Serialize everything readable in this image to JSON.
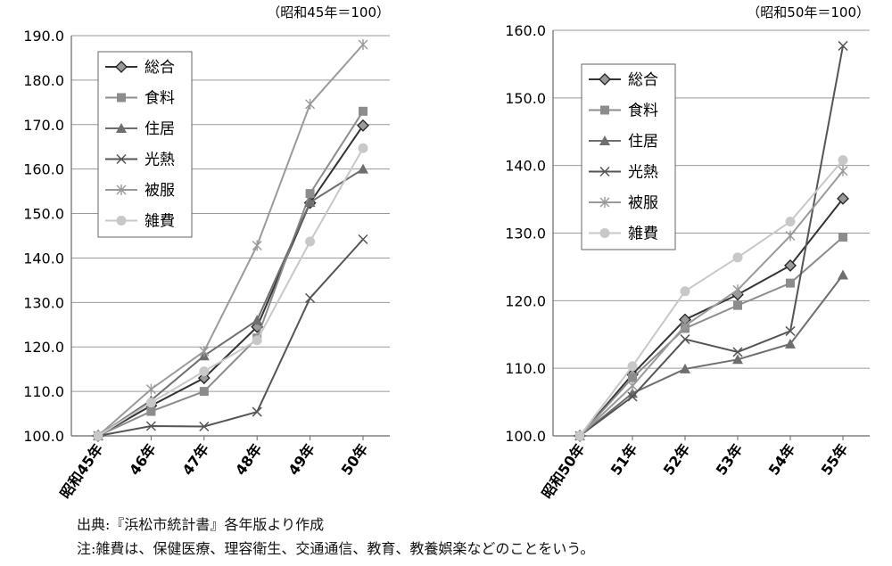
{
  "chart_data": [
    {
      "type": "line",
      "title": "",
      "base_note": "（昭和45年＝100）",
      "xlabel": "",
      "ylabel": "",
      "categories": [
        "昭和45年",
        "46年",
        "47年",
        "48年",
        "49年",
        "50年"
      ],
      "ylim": [
        100,
        190
      ],
      "yticks": [
        "100.0",
        "110.0",
        "120.0",
        "130.0",
        "140.0",
        "150.0",
        "160.0",
        "170.0",
        "180.0",
        "190.0"
      ],
      "grid": true,
      "legend_position": "top-left",
      "series": [
        {
          "name": "総合",
          "values": [
            100.0,
            106.8,
            113.0,
            124.5,
            152.4,
            169.8
          ],
          "color": "#333333",
          "marker": "diamond"
        },
        {
          "name": "食料",
          "values": [
            100.0,
            105.5,
            110.0,
            122.0,
            154.5,
            173.0
          ],
          "color": "#8c8c8c",
          "marker": "square"
        },
        {
          "name": "住居",
          "values": [
            100.0,
            108.0,
            118.0,
            126.0,
            152.5,
            160.0
          ],
          "color": "#6e6e6e",
          "marker": "triangle"
        },
        {
          "name": "光熱",
          "values": [
            100.0,
            102.2,
            102.1,
            105.4,
            131.0,
            144.2
          ],
          "color": "#555555",
          "marker": "x"
        },
        {
          "name": "被服",
          "values": [
            100.0,
            110.5,
            119.0,
            142.8,
            174.6,
            188.0
          ],
          "color": "#9a9a9a",
          "marker": "star"
        },
        {
          "name": "雑費",
          "values": [
            100.0,
            107.5,
            114.5,
            121.5,
            143.7,
            164.7
          ],
          "color": "#c8c8c8",
          "marker": "circle"
        }
      ]
    },
    {
      "type": "line",
      "title": "",
      "base_note": "（昭和50年＝100）",
      "xlabel": "",
      "ylabel": "",
      "categories": [
        "昭和50年",
        "51年",
        "52年",
        "53年",
        "54年",
        "55年"
      ],
      "ylim": [
        100,
        160
      ],
      "yticks": [
        "100.0",
        "110.0",
        "120.0",
        "130.0",
        "140.0",
        "150.0",
        "160.0"
      ],
      "grid": true,
      "legend_position": "top-left",
      "series": [
        {
          "name": "総合",
          "values": [
            100.0,
            109.1,
            117.2,
            120.9,
            125.2,
            135.1
          ],
          "color": "#333333",
          "marker": "diamond"
        },
        {
          "name": "食料",
          "values": [
            100.0,
            108.6,
            115.9,
            119.3,
            122.6,
            129.4
          ],
          "color": "#8c8c8c",
          "marker": "square"
        },
        {
          "name": "住居",
          "values": [
            100.0,
            106.3,
            109.9,
            111.3,
            113.6,
            123.8
          ],
          "color": "#6e6e6e",
          "marker": "triangle"
        },
        {
          "name": "光熱",
          "values": [
            100.0,
            105.8,
            114.3,
            112.4,
            115.5,
            157.7
          ],
          "color": "#555555",
          "marker": "x"
        },
        {
          "name": "被服",
          "values": [
            100.0,
            107.4,
            116.3,
            121.6,
            129.6,
            139.2
          ],
          "color": "#9a9a9a",
          "marker": "star"
        },
        {
          "name": "雑費",
          "values": [
            100.0,
            110.3,
            121.4,
            126.4,
            131.7,
            140.8
          ],
          "color": "#c8c8c8",
          "marker": "circle"
        }
      ]
    }
  ],
  "notes": {
    "source": "出典:『浜松市統計書』各年版より作成",
    "note": "注:雑費は、保健医療、理容衛生、交通通信、教育、教養娯楽などのことをいう。"
  }
}
